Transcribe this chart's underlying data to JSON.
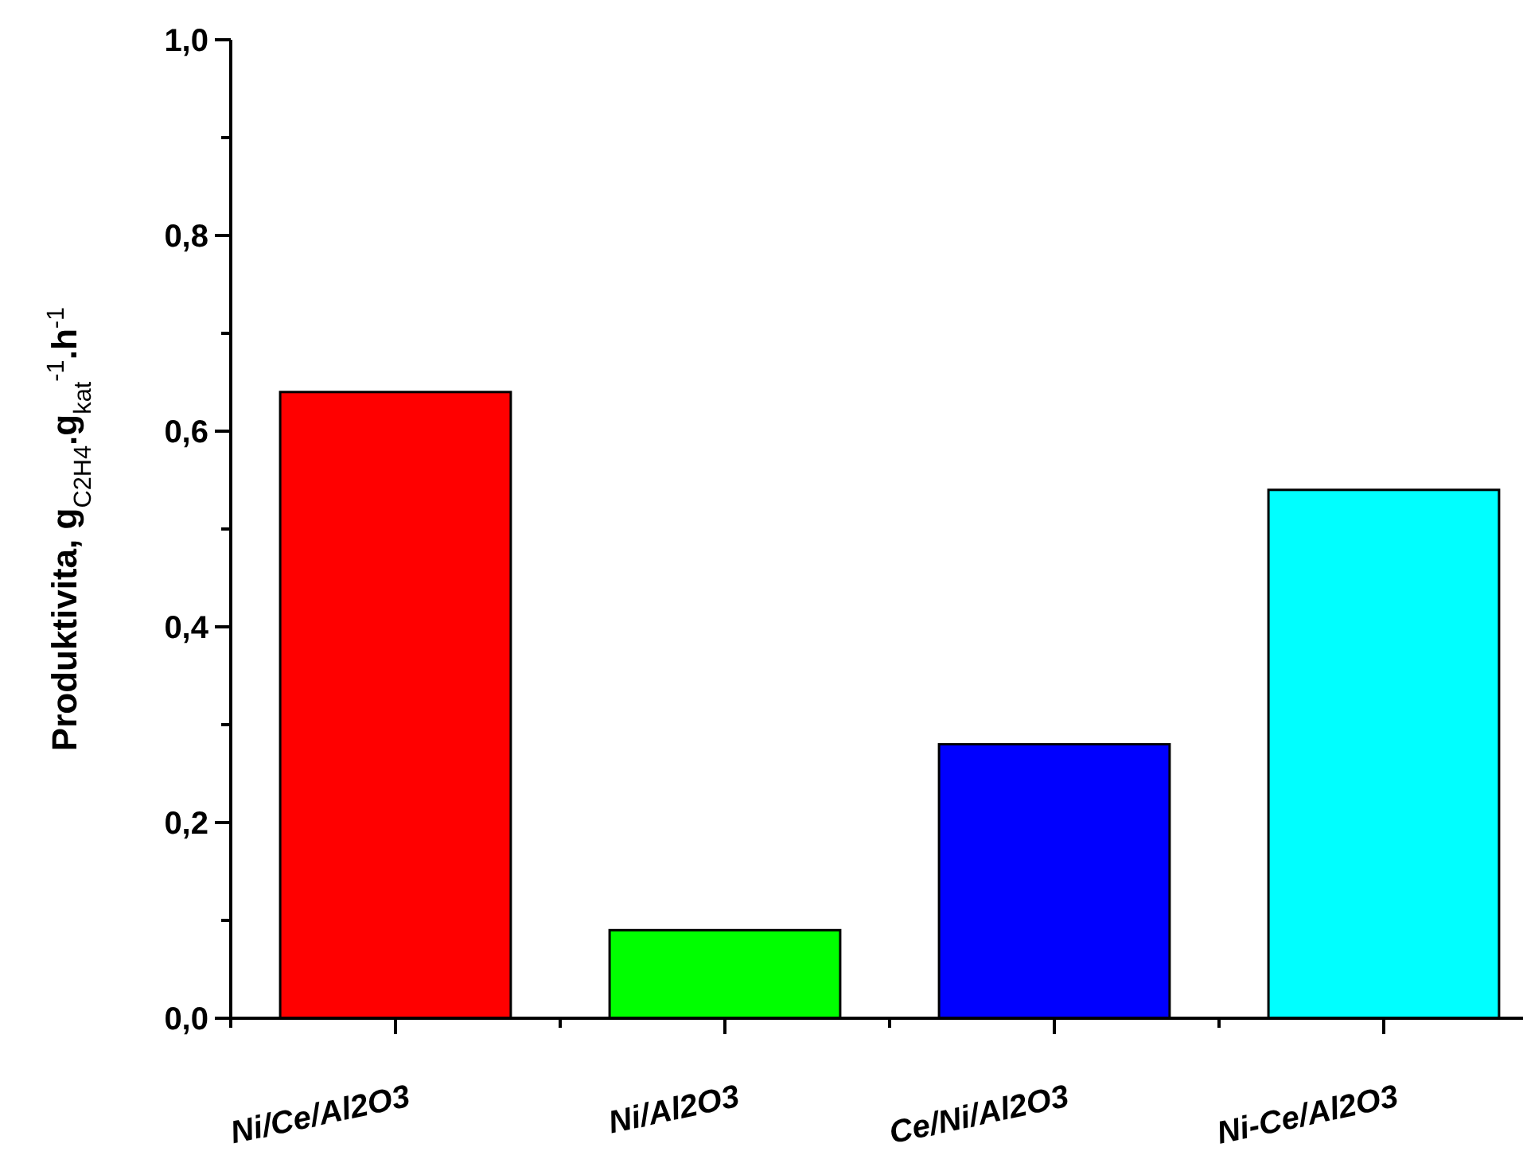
{
  "chart_data": {
    "type": "bar",
    "ylabel": "Produktivita, g$_{C2H4}$.g$_{kat}$$^{-1}$.h$^{-1}$",
    "categories": [
      "Ni/Ce/Al2O3",
      "Ni/Al2O3",
      "Ce/Ni/Al2O3",
      "Ni-Ce/Al2O3"
    ],
    "values": [
      0.64,
      0.09,
      0.28,
      0.54
    ],
    "colors": [
      "#ff0000",
      "#00ff00",
      "#0000ff",
      "#00ffff"
    ],
    "ylim": [
      0,
      1
    ],
    "yticks": [
      {
        "value": 0,
        "label": "0,0"
      },
      {
        "value": 0.1,
        "label": null
      },
      {
        "value": 0.2,
        "label": "0,2"
      },
      {
        "value": 0.3,
        "label": null
      },
      {
        "value": 0.4,
        "label": "0,4"
      },
      {
        "value": 0.5,
        "label": null
      },
      {
        "value": 0.6,
        "label": "0,6"
      },
      {
        "value": 0.7,
        "label": null
      },
      {
        "value": 0.8,
        "label": "0,8"
      },
      {
        "value": 0.9,
        "label": null
      },
      {
        "value": 1,
        "label": "1,0"
      }
    ],
    "grid": false
  }
}
